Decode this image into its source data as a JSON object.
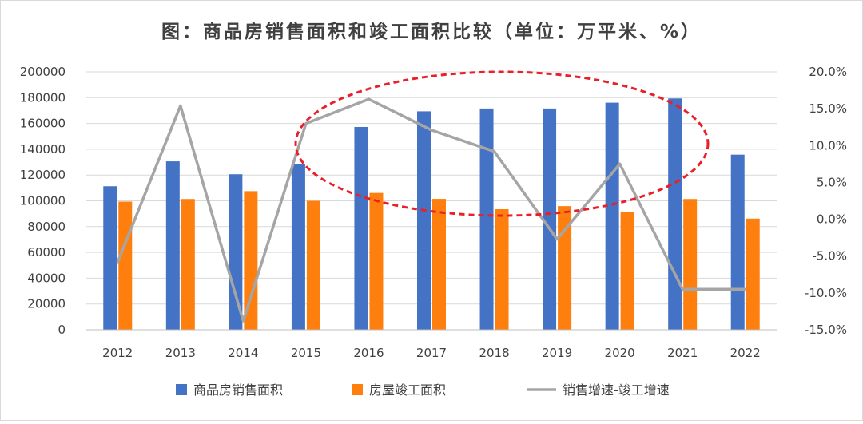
{
  "chart_data": {
    "type": "bar",
    "title": "图：商品房销售面积和竣工面积比较（单位：万平米、%）",
    "categories": [
      "2012",
      "2013",
      "2014",
      "2015",
      "2016",
      "2017",
      "2018",
      "2019",
      "2020",
      "2021",
      "2022"
    ],
    "series": [
      {
        "name": "商品房销售面积",
        "type": "bar",
        "axis": "left",
        "color": "#4472C4",
        "values": [
          111300,
          130600,
          120600,
          128500,
          157300,
          169400,
          171600,
          171600,
          176100,
          179400,
          135800
        ]
      },
      {
        "name": "房屋竣工面积",
        "type": "bar",
        "axis": "left",
        "color": "#FF7F0E",
        "values": [
          99400,
          101400,
          107500,
          100000,
          106100,
          101500,
          93500,
          95900,
          91200,
          101400,
          86200
        ]
      },
      {
        "name": "销售增速-竣工增速",
        "type": "line",
        "axis": "right",
        "color": "#A5A5A5",
        "values": [
          -5.8,
          15.4,
          -13.8,
          13.0,
          16.3,
          12.1,
          9.2,
          -2.7,
          7.5,
          -9.5,
          -9.5
        ]
      }
    ],
    "yTicks": [
      "200000",
      "180000",
      "160000",
      "140000",
      "120000",
      "100000",
      "80000",
      "60000",
      "40000",
      "20000",
      "0"
    ],
    "y2Ticks": [
      "20.0%",
      "15.0%",
      "10.0%",
      "5.0%",
      "0.0%",
      "-5.0%",
      "-10.0%",
      "-15.0%"
    ],
    "ylim": [
      0,
      200000
    ],
    "y2lim": [
      -15,
      20
    ],
    "legend_position": "bottom",
    "annotation": "red dashed ellipse highlighting 2015–2021"
  }
}
